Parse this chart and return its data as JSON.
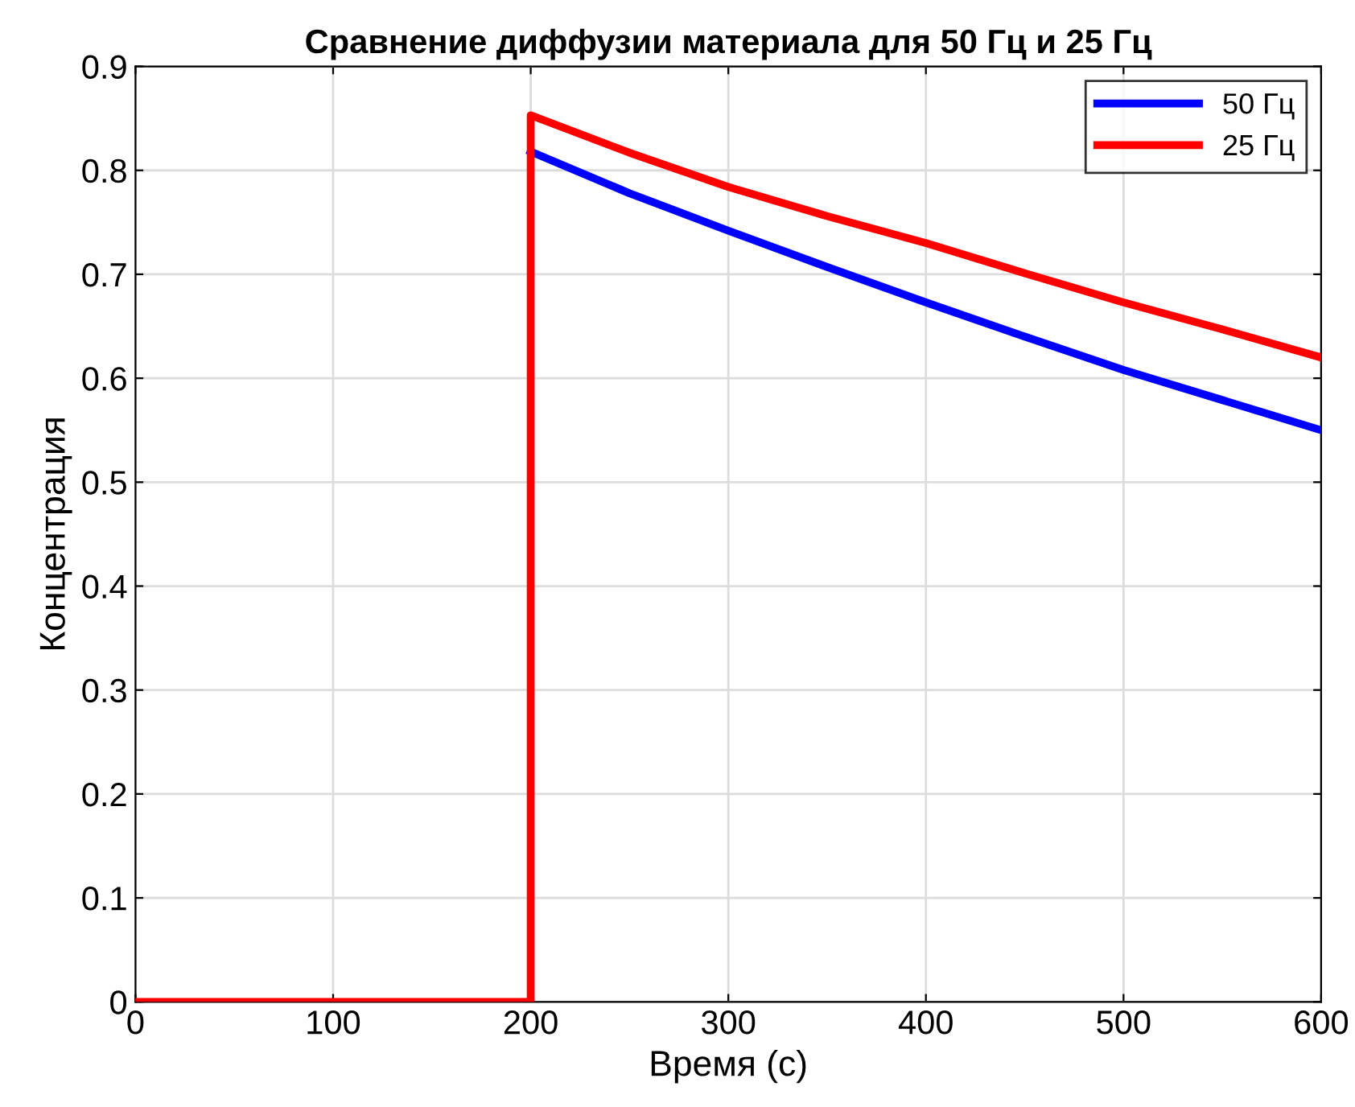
{
  "chart_data": {
    "type": "line",
    "title": "Сравнение диффузии материала для 50 Гц и 25 Гц",
    "xlabel": "Время (c)",
    "ylabel": "Концентрация",
    "xlim": [
      0,
      600
    ],
    "xticks": [
      0,
      100,
      200,
      300,
      400,
      500,
      600
    ],
    "ylim": [
      0,
      0.9
    ],
    "yticks": [
      0,
      0.1,
      0.2,
      0.3,
      0.4,
      0.5,
      0.6,
      0.7,
      0.8,
      0.9
    ],
    "grid": true,
    "legend": "top right",
    "marker": "none",
    "line_style": "solid",
    "series": [
      {
        "name": "50 Гц",
        "color": "#0000ff",
        "x": [
          200,
          250,
          300,
          350,
          400,
          450,
          500,
          550,
          600
        ],
        "values": [
          0.818,
          0.778,
          0.742,
          0.707,
          0.673,
          0.64,
          0.608,
          0.579,
          0.55
        ]
      },
      {
        "name": "25 Гц",
        "color": "#ff0000",
        "x": [
          0,
          200,
          200,
          250,
          300,
          350,
          400,
          450,
          500,
          550,
          600
        ],
        "values": [
          0,
          0,
          0.853,
          0.817,
          0.784,
          0.756,
          0.73,
          0.701,
          0.673,
          0.647,
          0.62
        ]
      }
    ]
  }
}
